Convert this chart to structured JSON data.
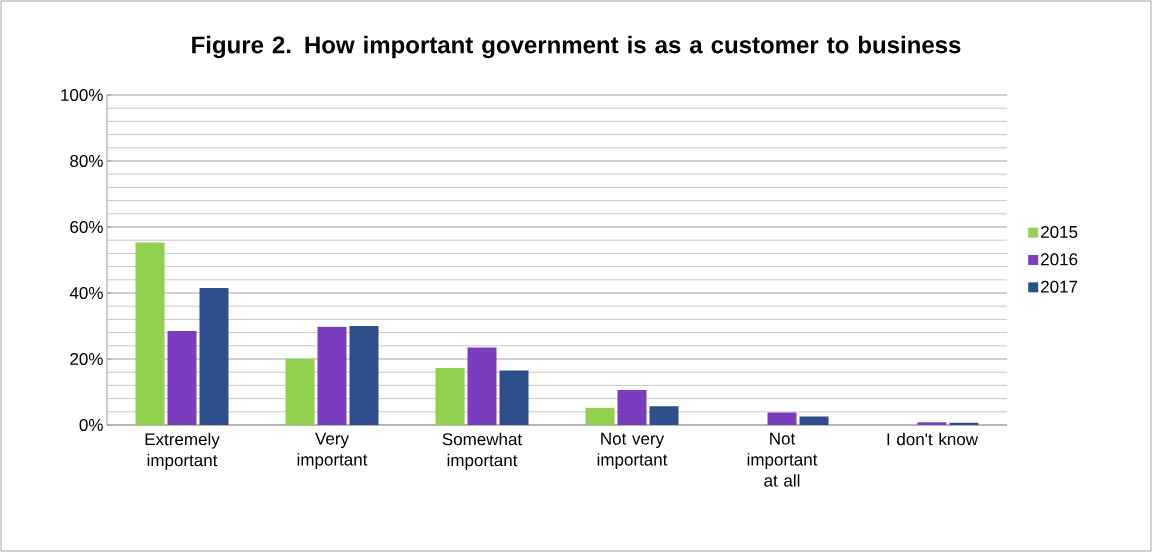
{
  "chart_data": {
    "type": "bar",
    "title": "Figure 2. How important government is as a customer to business",
    "categories": [
      "Extremely important",
      "Very important",
      "Somewhat important",
      "Not very important",
      "Not important at all",
      "I don't know"
    ],
    "series": [
      {
        "name": "2015",
        "color": "#92d050",
        "values": [
          55.3,
          20.1,
          17.3,
          5.2,
          0,
          0
        ]
      },
      {
        "name": "2016",
        "color": "#7a3dbd",
        "values": [
          28.5,
          29.8,
          23.5,
          10.6,
          3.8,
          0.8
        ]
      },
      {
        "name": "2017",
        "color": "#2f4f8c",
        "values": [
          41.5,
          30,
          16.5,
          5.7,
          2.6,
          0.7
        ]
      }
    ],
    "ylim": [
      0,
      100
    ],
    "yticks": [
      {
        "value": 0,
        "label": "0%"
      },
      {
        "value": 20,
        "label": "20%"
      },
      {
        "value": 40,
        "label": "40%"
      },
      {
        "value": 60,
        "label": "60%"
      },
      {
        "value": 80,
        "label": "80%"
      },
      {
        "value": 100,
        "label": "100%"
      }
    ],
    "grid": "y",
    "legend": "right"
  }
}
